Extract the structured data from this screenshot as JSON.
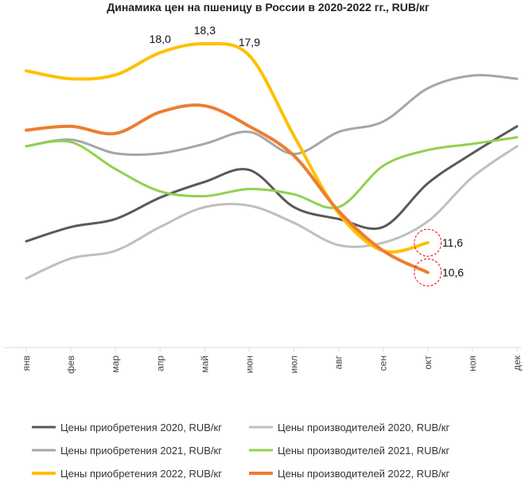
{
  "chart_data": {
    "type": "line",
    "title": "Динамика цен на пшеницу в России в 2020-2022 гг., RUB/кг",
    "categories": [
      "янв",
      "фев",
      "мар",
      "апр",
      "май",
      "июн",
      "июл",
      "авг",
      "сен",
      "окт",
      "ноя",
      "дек"
    ],
    "series": [
      {
        "name": "Цены приобретения 2020, RUB/кг",
        "color": "#595959",
        "values": [
          11.65,
          12.13,
          12.4,
          13.12,
          13.65,
          14.05,
          12.8,
          12.4,
          12.13,
          13.6,
          14.61,
          15.52
        ]
      },
      {
        "name": "Цены производителей 2020, RUB/кг",
        "color": "#bfbfbf",
        "values": [
          10.4,
          11.07,
          11.33,
          12.13,
          12.8,
          12.85,
          12.27,
          11.52,
          11.6,
          12.32,
          13.81,
          14.85
        ]
      },
      {
        "name": "Цены приобретения 2021, RUB/кг",
        "color": "#a6a6a6",
        "values": [
          14.85,
          15.07,
          14.61,
          14.61,
          14.93,
          15.33,
          14.59,
          15.33,
          15.68,
          16.8,
          17.23,
          17.12
        ]
      },
      {
        "name": "Цены производителей 2021, RUB/кг",
        "color": "#92d050",
        "values": [
          14.85,
          14.99,
          14.08,
          13.33,
          13.17,
          13.41,
          13.23,
          12.8,
          14.19,
          14.72,
          14.93,
          15.15
        ]
      },
      {
        "name": "Цены приобретения 2022, RUB/кг",
        "color": "#ffc000",
        "values": [
          17.39,
          17.12,
          17.25,
          18.0,
          18.3,
          17.9,
          15.2,
          12.6,
          11.33,
          11.6,
          null,
          null
        ],
        "value_labels": [
          null,
          null,
          null,
          "18,0",
          "18,3",
          "17,9",
          null,
          null,
          null,
          "11,6",
          null,
          null
        ]
      },
      {
        "name": "Цены производителей 2022, RUB/кг",
        "color": "#ed7d31",
        "values": [
          15.39,
          15.52,
          15.28,
          16.0,
          16.21,
          15.52,
          14.53,
          12.67,
          11.33,
          10.6,
          null,
          null
        ],
        "value_labels": [
          null,
          null,
          null,
          null,
          null,
          null,
          null,
          null,
          null,
          "10,6",
          null,
          null
        ]
      }
    ]
  }
}
